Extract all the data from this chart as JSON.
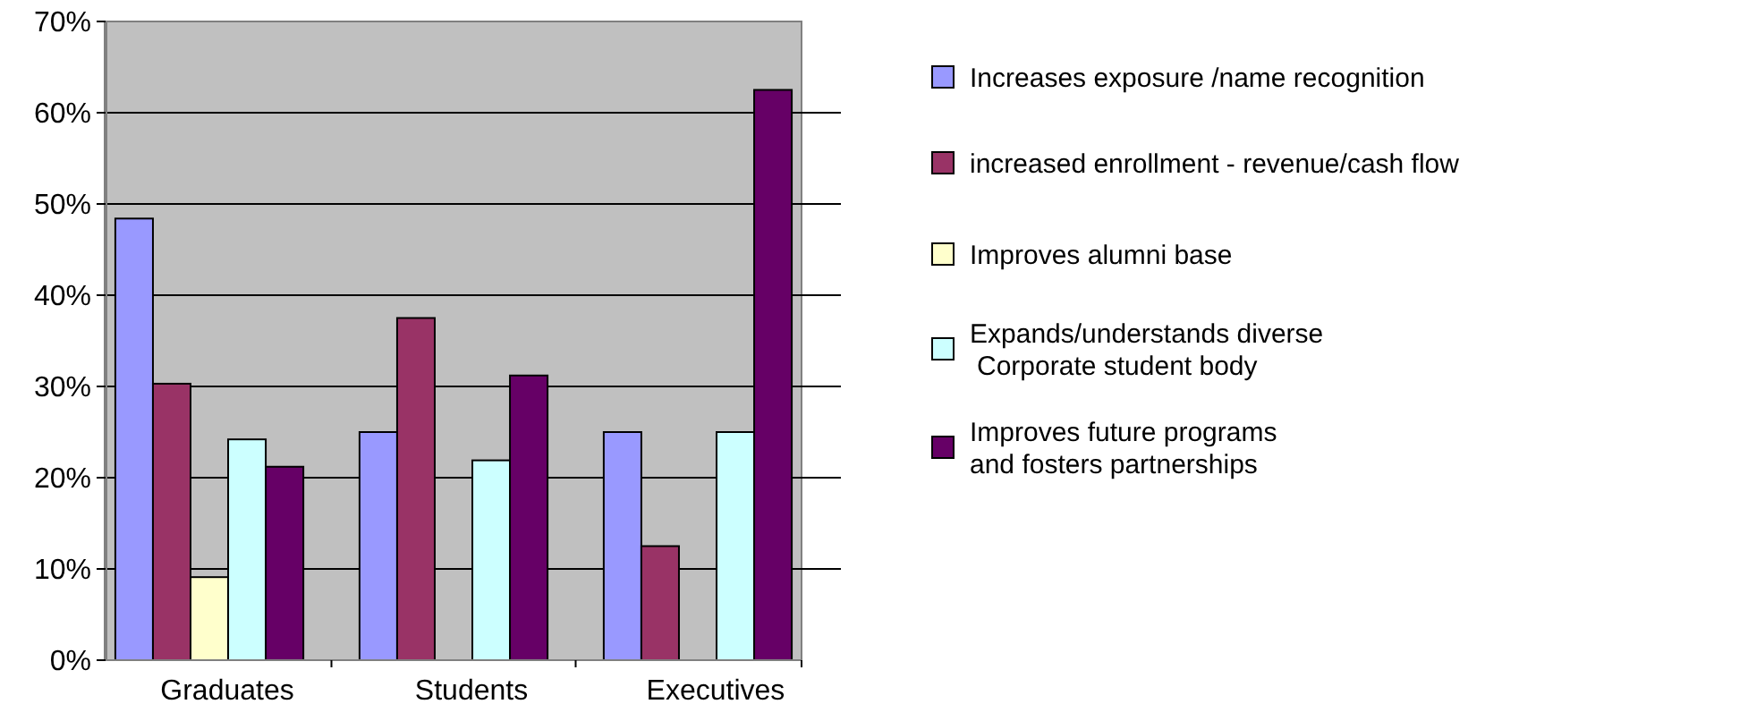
{
  "chart_data": {
    "type": "bar",
    "categories": [
      "Graduates",
      "Students",
      "Executives"
    ],
    "series": [
      {
        "name": "Increases exposure /name recognition",
        "color": "#9999ff",
        "values": [
          48.4,
          25.0,
          25.0
        ]
      },
      {
        "name": "increased enrollment - revenue/cash flow",
        "color": "#993366",
        "values": [
          30.3,
          37.5,
          12.5
        ]
      },
      {
        "name": "Improves alumni base",
        "color": "#ffffcc",
        "values": [
          9.1,
          null,
          null
        ]
      },
      {
        "name": "Expands/understands diverse\nCorporate student body",
        "color": "#ccffff",
        "values": [
          24.2,
          21.9,
          25.0
        ]
      },
      {
        "name": "Improves future programs\nand fosters partnerships",
        "color": "#660066",
        "values": [
          21.2,
          31.2,
          62.5
        ]
      }
    ],
    "ylim": [
      0,
      70
    ],
    "yticks": [
      {
        "value": 0,
        "label": "0%"
      },
      {
        "value": 10,
        "label": "10%"
      },
      {
        "value": 20,
        "label": "20%"
      },
      {
        "value": 30,
        "label": "30%"
      },
      {
        "value": 40,
        "label": "40%"
      },
      {
        "value": 50,
        "label": "50%"
      },
      {
        "value": 60,
        "label": "60%"
      },
      {
        "value": 70,
        "label": "70%"
      }
    ],
    "grid": "y",
    "legend": "right"
  }
}
